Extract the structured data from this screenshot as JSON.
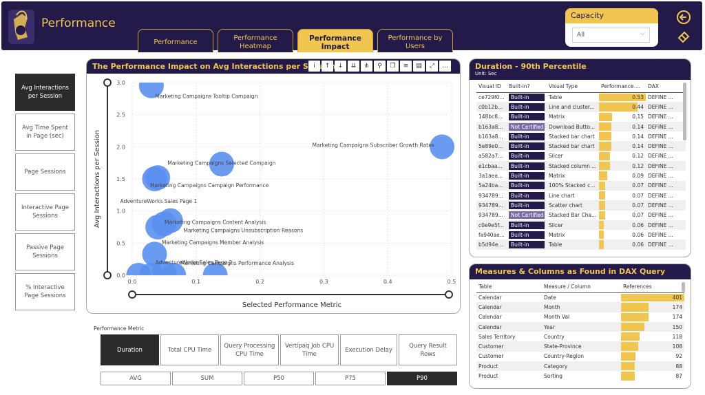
{
  "header": {
    "title": "Performance",
    "tabs": [
      {
        "label": "Performance",
        "active": false
      },
      {
        "label": "Performance Heatmap",
        "active": false
      },
      {
        "label": "Performance Impact",
        "active": true
      },
      {
        "label": "Performance by Users",
        "active": false
      }
    ],
    "capacity": {
      "label": "Capacity",
      "value": "All"
    }
  },
  "side_buttons": [
    {
      "label": "Avg Interactions per Session",
      "active": true
    },
    {
      "label": "Avg Time Spent in Page (sec)",
      "active": false
    },
    {
      "label": "Page Sessions",
      "active": false
    },
    {
      "label": "Interactive Page Sessions",
      "active": false
    },
    {
      "label": "Passive Page Sessions",
      "active": false
    },
    {
      "label": "% Interactive Page Sessions",
      "active": false
    }
  ],
  "scatter": {
    "title": "The Performance Impact on Avg Interactions per Session",
    "toolbar_icons": [
      "info-icon",
      "arrow-up-icon",
      "arrow-down-icon",
      "drill-down-icon",
      "expand-hierarchy-icon",
      "pin-icon",
      "copy-icon",
      "filter-icon",
      "format-icon",
      "focus-mode-icon",
      "more-options-icon"
    ]
  },
  "chart_data": {
    "type": "scatter",
    "title": "The Performance Impact on Avg Interactions per Session",
    "xlabel": "Selected Performance Metric",
    "ylabel": "Avg Interactions per Session",
    "xlim": [
      0,
      0.5
    ],
    "ylim": [
      0,
      3.0
    ],
    "x_ticks": [
      "0.0",
      "0.1",
      "0.2",
      "0.3",
      "0.4",
      "0.5"
    ],
    "y_ticks": [
      "0.0",
      "0.5",
      "1.0",
      "1.5",
      "2.0",
      "2.5",
      "3.0"
    ],
    "color": "#5b8ff0",
    "points": [
      {
        "label": "Marketing Campaigns Tooltip Campaign",
        "x": 0.03,
        "y": 2.95
      },
      {
        "label": "Marketing Campaigns Subscriber Growth Rates",
        "x": 0.485,
        "y": 2.0
      },
      {
        "label": "Marketing Campaigns Selected Campaign",
        "x": 0.14,
        "y": 1.73
      },
      {
        "label": "Marketing Campaigns Campaign Performance",
        "x": 0.04,
        "y": 1.52
      },
      {
        "label": "AdventureWorks Sales Page 1",
        "x": 0.035,
        "y": 1.5
      },
      {
        "label": "Marketing Campaigns Content Analysis",
        "x": 0.06,
        "y": 0.85
      },
      {
        "label": "Marketing Campaigns Unsubscription Reasons",
        "x": 0.05,
        "y": 0.8
      },
      {
        "label": "Marketing Campaigns Member Analysis",
        "x": 0.04,
        "y": 0.75
      },
      {
        "label": "AdventureWorks Sales Page 2",
        "x": 0.035,
        "y": 0.33
      },
      {
        "label": "Marketing Campaigns Performance Analysis",
        "x": 0.05,
        "y": 0.03
      },
      {
        "label": "",
        "x": 0.01,
        "y": 0.0
      },
      {
        "label": "",
        "x": 0.03,
        "y": 0.0
      },
      {
        "label": "",
        "x": 0.065,
        "y": 0.0
      },
      {
        "label": "",
        "x": 0.13,
        "y": 0.0
      }
    ]
  },
  "metric": {
    "label": "Performance Metric",
    "options": [
      {
        "label": "Duration",
        "active": true
      },
      {
        "label": "Total CPU Time",
        "active": false
      },
      {
        "label": "Query Processing CPU Time",
        "active": false
      },
      {
        "label": "Vertipaq Job CPU Time",
        "active": false
      },
      {
        "label": "Execution Delay",
        "active": false
      },
      {
        "label": "Query Result Rows",
        "active": false
      }
    ],
    "aggregations": [
      {
        "label": "AVG",
        "active": false
      },
      {
        "label": "SUM",
        "active": false
      },
      {
        "label": "P50",
        "active": false
      },
      {
        "label": "P75",
        "active": false
      },
      {
        "label": "P90",
        "active": true
      }
    ]
  },
  "duration_table": {
    "title": "Duration - 90th Percentile",
    "subtitle": "Unit: Sec",
    "columns": [
      "Visual ID",
      "Built-in?",
      "Visual Type",
      "Performance ...",
      "DAX"
    ],
    "max_value": 0.53,
    "rows": [
      {
        "id": "ce729f0...",
        "builtin": "Built-in",
        "type": "Table",
        "value": "0.53",
        "dax": "DEFINE ..."
      },
      {
        "id": "c0b12b...",
        "builtin": "Built-in",
        "type": "Line and cluster...",
        "value": "0.44",
        "dax": "DEFINE ..."
      },
      {
        "id": "148bc8...",
        "builtin": "Built-in",
        "type": "Matrix",
        "value": "0.15",
        "dax": "DEFINE ..."
      },
      {
        "id": "b163a8...",
        "builtin": "Not Certified",
        "type": "Download Butto...",
        "value": "0.14",
        "dax": "DEFINE ..."
      },
      {
        "id": "b163a8...",
        "builtin": "Built-in",
        "type": "Stacked bar chart",
        "value": "0.14",
        "dax": "DEFINE ..."
      },
      {
        "id": "5e89e0...",
        "builtin": "Built-in",
        "type": "Stacked bar chart",
        "value": "0.14",
        "dax": "DEFINE ..."
      },
      {
        "id": "a582a7...",
        "builtin": "Built-in",
        "type": "Slicer",
        "value": "0.12",
        "dax": "DEFINE ..."
      },
      {
        "id": "e1cbaa...",
        "builtin": "Built-in",
        "type": "Stacked column ...",
        "value": "0.12",
        "dax": "DEFINE ..."
      },
      {
        "id": "3a1aea...",
        "builtin": "Built-in",
        "type": "Matrix",
        "value": "0.09",
        "dax": "DEFINE ..."
      },
      {
        "id": "5a24ba...",
        "builtin": "Built-in",
        "type": "100% Stacked c...",
        "value": "0.07",
        "dax": "DEFINE ..."
      },
      {
        "id": "934789...",
        "builtin": "Built-in",
        "type": "Line chart",
        "value": "0.07",
        "dax": "DEFINE ..."
      },
      {
        "id": "934789...",
        "builtin": "Built-in",
        "type": "Scatter chart",
        "value": "0.07",
        "dax": "DEFINE ..."
      },
      {
        "id": "934789...",
        "builtin": "Not Certified",
        "type": "Stacked Bar Cha...",
        "value": "0.07",
        "dax": "DEFINE ..."
      },
      {
        "id": "c0e9e5f...",
        "builtin": "Built-in",
        "type": "Slicer",
        "value": "0.06",
        "dax": "DEFINE ..."
      },
      {
        "id": "fa940ae...",
        "builtin": "Built-in",
        "type": "Matrix",
        "value": "0.06",
        "dax": "DEFINE ..."
      },
      {
        "id": "b5d94e...",
        "builtin": "Built-in",
        "type": "Table",
        "value": "0.06",
        "dax": "DEFINE ..."
      }
    ]
  },
  "measures_table": {
    "title": "Measures & Columns as Found in DAX Query",
    "columns": [
      "Table",
      "Measure / Column",
      "References"
    ],
    "max_value": 401,
    "rows": [
      {
        "table": "Calendar",
        "column": "Date",
        "refs": "401"
      },
      {
        "table": "Calendar",
        "column": "Month",
        "refs": "174"
      },
      {
        "table": "Calendar",
        "column": "Month Val",
        "refs": "174"
      },
      {
        "table": "Calendar",
        "column": "Year",
        "refs": "150"
      },
      {
        "table": "Sales Territory",
        "column": "Country",
        "refs": "118"
      },
      {
        "table": "Customer",
        "column": "State-Province",
        "refs": "108"
      },
      {
        "table": "Customer",
        "column": "Country-Region",
        "refs": "92"
      },
      {
        "table": "Product",
        "column": "Category",
        "refs": "88"
      },
      {
        "table": "Product",
        "column": "Sorting",
        "refs": "87"
      }
    ]
  }
}
